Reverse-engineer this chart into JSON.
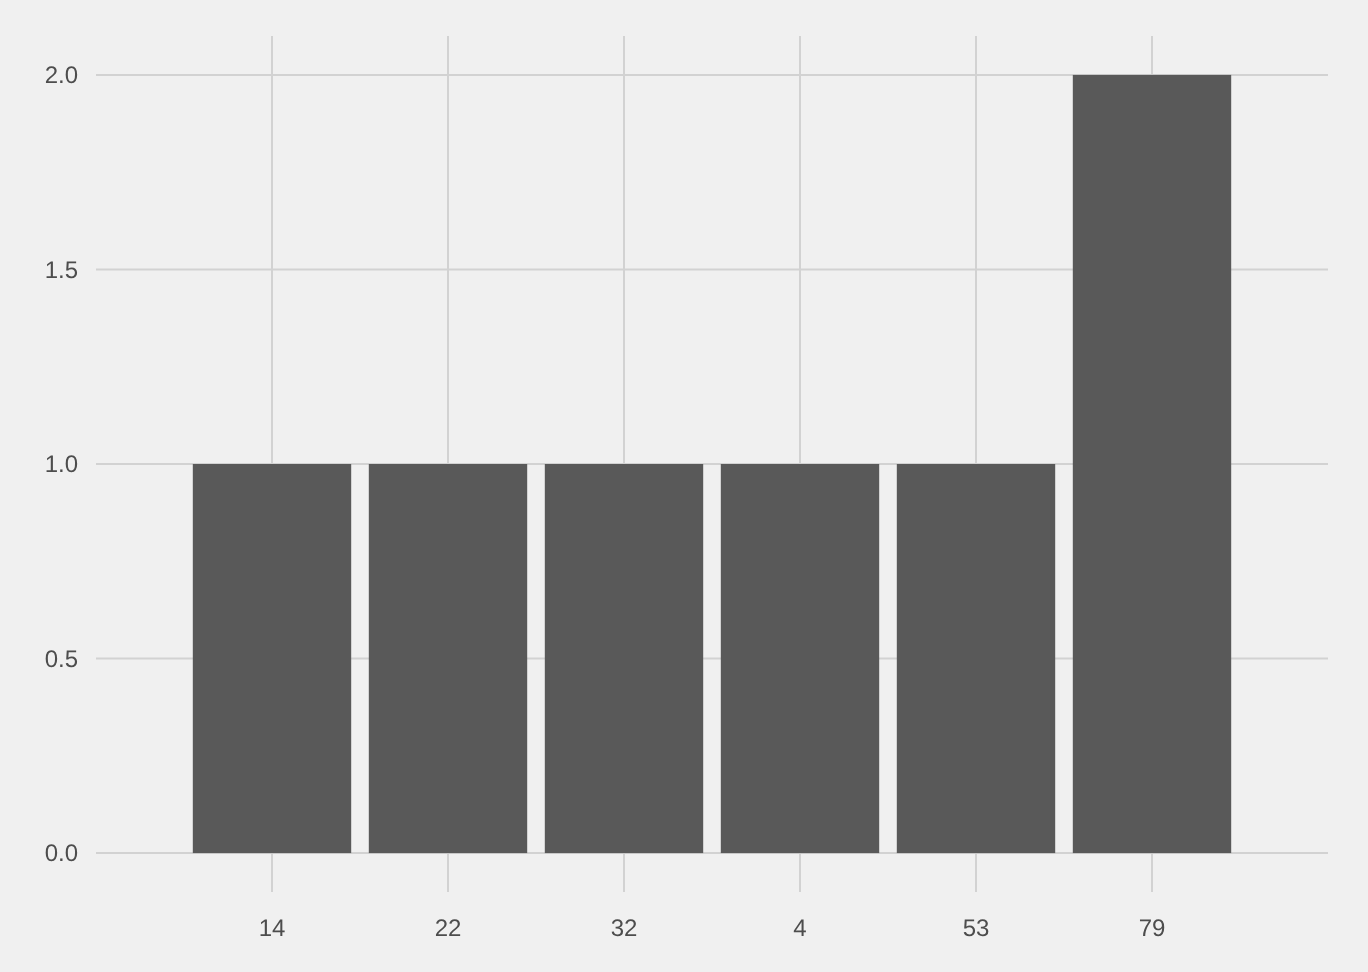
{
  "chart_data": {
    "type": "bar",
    "categories": [
      "14",
      "22",
      "32",
      "4",
      "53",
      "79"
    ],
    "values": [
      1,
      1,
      1,
      1,
      1,
      2
    ],
    "color": "#595959",
    "ylim": [
      -0.1,
      2.1
    ],
    "yticks": [
      {
        "value": 0,
        "label": "0.0"
      },
      {
        "value": 0.5,
        "label": "0.5"
      },
      {
        "value": 1,
        "label": "1.0"
      },
      {
        "value": 1.5,
        "label": "1.5"
      },
      {
        "value": 2,
        "label": "2.0"
      }
    ],
    "grid": true
  }
}
